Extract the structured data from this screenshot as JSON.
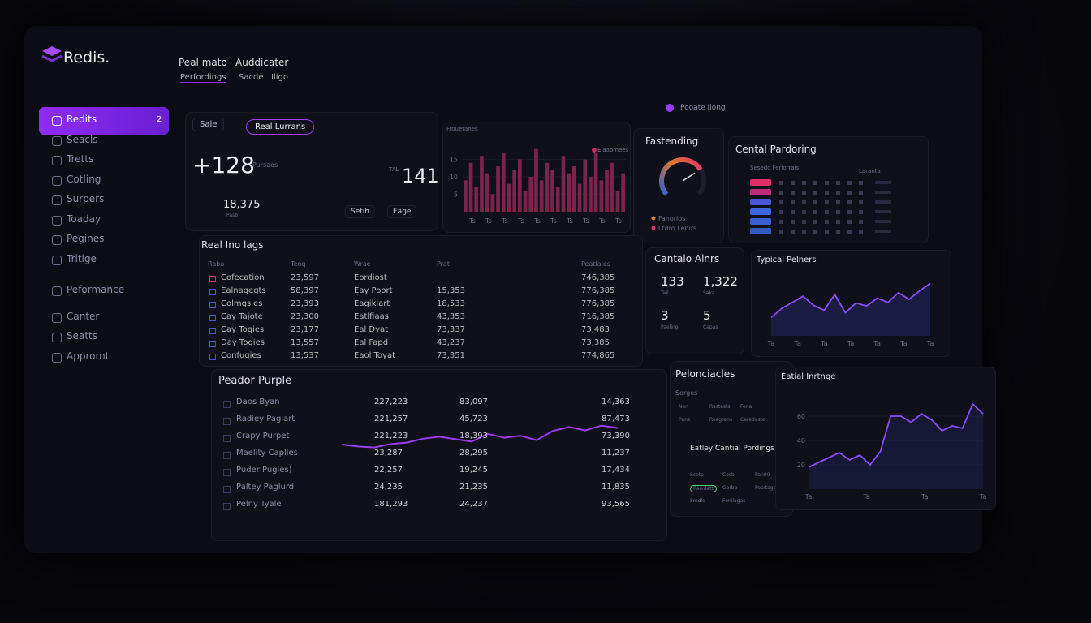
{
  "brand": "Redis.",
  "nav": {
    "menus": [
      "Peal mato",
      "Auddicater"
    ],
    "tabs": [
      "Perfordings",
      "Sacde",
      "Iligo"
    ],
    "search": "Pooate Ilong"
  },
  "sidebar": {
    "items": [
      {
        "label": "Redits",
        "badge": "2"
      },
      {
        "label": "Seacls"
      },
      {
        "label": "Tretts"
      },
      {
        "label": "Cotling"
      },
      {
        "label": "Surpers"
      },
      {
        "label": "Toaday"
      },
      {
        "label": "Pegines"
      },
      {
        "label": "Tritige"
      },
      {
        "label": "Peformance"
      },
      {
        "label": "Canter"
      },
      {
        "label": "Seatts"
      },
      {
        "label": "Apprornt"
      }
    ]
  },
  "summary": {
    "select": "Sale",
    "pill": "Real Lurrans",
    "delta": "+128",
    "delta_note": "Pursaos",
    "count": "141",
    "count_note": "TAL",
    "total": "18,375",
    "total_note": "Pasb",
    "filters": [
      "Setih",
      "Eage"
    ]
  },
  "bar_chart": {
    "title": "Frouetanes",
    "legend": "Eiaaomees",
    "ylim": [
      0,
      20
    ],
    "yticks": [
      5,
      10,
      15
    ],
    "xlabels": [
      "Ts",
      "Ts",
      "Ts",
      "Ts",
      "Ts",
      "Ts",
      "Ts",
      "Ts",
      "Ts",
      "Ts"
    ],
    "values": [
      9,
      14,
      7,
      16,
      11,
      5,
      13,
      17,
      8,
      12,
      15,
      6,
      10,
      18,
      9,
      14,
      12,
      7,
      16,
      11,
      13,
      8,
      15,
      10,
      17,
      9,
      12,
      14,
      6,
      11
    ]
  },
  "gauge": {
    "title": "Fastending",
    "value": 72,
    "max": 100,
    "legend": [
      "Fanorios",
      "Ltdro Lebirs"
    ]
  },
  "central": {
    "title": "Cental Pardoring",
    "legend": "Sesedo Ferlorrais",
    "tag": "Laranta"
  },
  "table": {
    "title": "Real Ino lags",
    "columns": [
      "Raba",
      "Tenq",
      "Wrae",
      "Prat",
      "Peatlaies"
    ],
    "rows": [
      [
        "Cofecation",
        "23,597",
        "Eordiost",
        null,
        "746,385"
      ],
      [
        "Ealnagegts",
        "58,397",
        "Eay Poort",
        "15,353",
        "776,385"
      ],
      [
        "Colmgsies",
        "23,393",
        "Eagiklart",
        "18,533",
        "776,385"
      ],
      [
        "Cay Tajote",
        "23,300",
        "Eatlfiaas",
        "43,353",
        "716,385"
      ],
      [
        "Cay Togies",
        "23,177",
        "Eal Dyat",
        "73,337",
        "73,483"
      ],
      [
        "Day Togies",
        "13,557",
        "Eal Fapd",
        "43,237",
        "73,385"
      ],
      [
        "Confugies",
        "13,537",
        "Eaol Toyat",
        "73,351",
        "774,865"
      ]
    ]
  },
  "purple": {
    "title": "Peador Purple",
    "rows": [
      [
        "Daos Byan",
        "227,223",
        "83,097",
        "14,363"
      ],
      [
        "Radiey Paglart",
        "221,257",
        "45,723",
        "87,473"
      ],
      [
        "Crapy Purpet",
        "221,223",
        "18,393",
        "73,390"
      ],
      [
        "Maelity Caplies",
        "23,287",
        "28,295",
        "11,237"
      ],
      [
        "Puder Pugies)",
        "22,257",
        "19,245",
        "17,434"
      ],
      [
        "Paltey Paglurd",
        "24,235",
        "21,235",
        "11,835"
      ],
      [
        "Pelny Tyale",
        "181,293",
        "24,237",
        "93,565"
      ]
    ],
    "trend": {
      "ylim": [
        0,
        10
      ],
      "values": [
        3,
        2.6,
        2.4,
        3.1,
        3.4,
        4.2,
        4.6,
        4.1,
        3.6,
        5.2,
        4.4,
        4.8,
        3.9,
        5.8,
        6.6,
        5.9,
        6.9,
        6.4
      ]
    }
  },
  "alerts": {
    "title": "Cantalo Alnrs",
    "stats": [
      {
        "value": "133",
        "label": "Tail"
      },
      {
        "value": "1,322",
        "label": "Saka"
      },
      {
        "value": "3",
        "label": "Paeling"
      },
      {
        "value": "5",
        "label": "Capas"
      }
    ]
  },
  "typical": {
    "title": "Typical Pelners",
    "ylim": [
      0,
      10
    ],
    "values": [
      3,
      4.5,
      5.5,
      6.5,
      5,
      4.2,
      6.8,
      3.8,
      5.4,
      4.9,
      6.2,
      5.5,
      7.1,
      6,
      7.4,
      8.6
    ],
    "xlabels": [
      "Ta",
      "Ta",
      "Ta",
      "Ta",
      "Ta",
      "Ta",
      "Ta"
    ]
  },
  "pelon": {
    "title": "Pelonciacles",
    "subtitle": "Sorges",
    "labels": [
      "Nen",
      "Rastasts",
      "Fena",
      "Pens",
      "Reagrens",
      "Caredaste"
    ],
    "heading": "Eatley Cantial Pordings",
    "grid": [
      "Scetp",
      "Cosbi",
      "Pan90",
      "Rawdatt",
      "Gorbb",
      "Pesrtagas",
      "Smdle",
      "Fonilagas"
    ]
  },
  "eatial": {
    "title": "Eatial Inrtnge",
    "ylim": [
      0,
      80
    ],
    "yticks": [
      20,
      40,
      60
    ],
    "values": [
      18,
      22,
      26,
      30,
      24,
      28,
      20,
      31,
      60,
      60,
      55,
      62,
      57,
      48,
      52,
      50,
      70,
      62
    ],
    "xlabels": [
      "Ta",
      "Ta",
      "Ta",
      "Ta"
    ]
  }
}
